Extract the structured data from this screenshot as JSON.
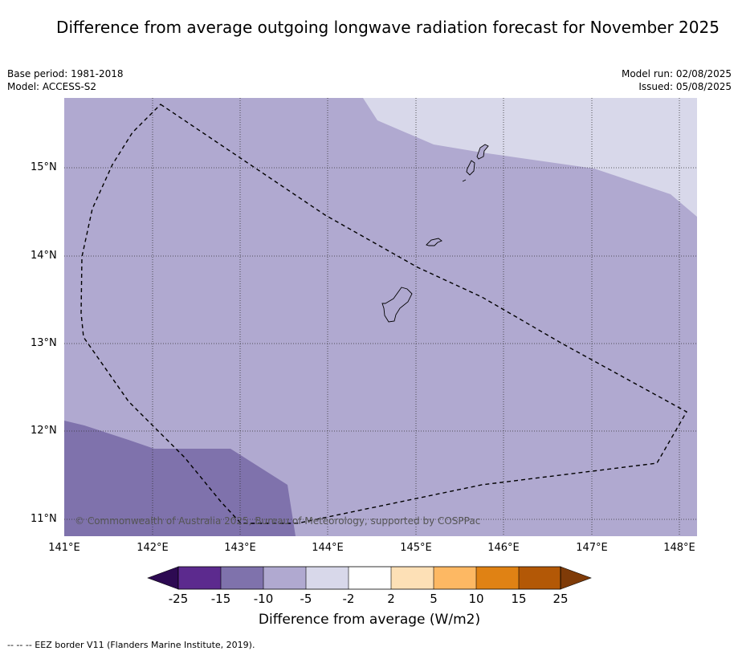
{
  "title": "Difference from average outgoing longwave radiation forecast for November 2025",
  "info_left": {
    "base_period": "Base period: 1981-2018",
    "model": "Model: ACCESS-S2"
  },
  "info_right": {
    "model_run": "Model run: 02/08/2025",
    "issued": "Issued: 05/08/2025"
  },
  "map": {
    "lat_labels": [
      "15°N",
      "14°N",
      "13°N",
      "12°N",
      "11°N"
    ],
    "lon_labels": [
      "141°E",
      "142°E",
      "143°E",
      "144°E",
      "145°E",
      "146°E",
      "147°E",
      "148°E"
    ],
    "copyright": "© Commonwealth of Australia 2025, Bureau of Meteorology, supported by COSPPac",
    "region_colors": {
      "-15 to -10": "#7f72ac",
      "-10 to -5": "#b0a9d0",
      "-5 to -2": "#d8d8ea"
    }
  },
  "colorbar": {
    "ticks": [
      "-25",
      "-15",
      "-10",
      "-5",
      "-2",
      "2",
      "5",
      "10",
      "15",
      "25"
    ],
    "colors": [
      "#2d0a52",
      "#5c2a8e",
      "#7f72ac",
      "#b0a9d0",
      "#d8d8ea",
      "#ffffff",
      "#fde0b6",
      "#fdb863",
      "#e08214",
      "#b35806",
      "#7f3b08"
    ],
    "label": "Difference from average (W/m2)"
  },
  "footer": "-- -- -- EEZ border V11 (Flanders Marine Institute, 2019)."
}
